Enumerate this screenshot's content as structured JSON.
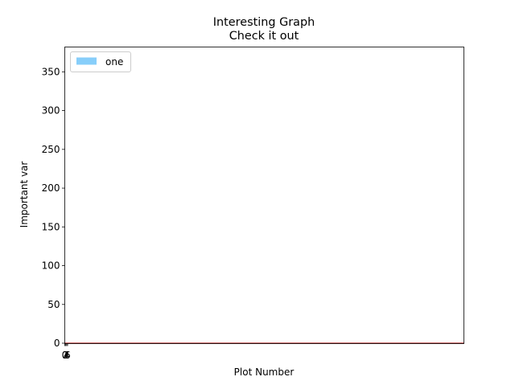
{
  "chart_data": {
    "type": "bar",
    "title": "Interesting Graph",
    "subtitle": "Check it out",
    "xlabel": "Plot Number",
    "ylabel": "Important var",
    "ylim": [
      0,
      382
    ],
    "yticks": [
      0,
      50,
      100,
      150,
      200,
      250,
      300,
      350
    ],
    "xlim": [
      0,
      850
    ],
    "xtick_labels": [
      "0",
      "2",
      "4",
      "6"
    ],
    "x": [
      0,
      2,
      4,
      6
    ],
    "series": [
      {
        "name": "one",
        "color": "#87cefa",
        "values": [
          0,
          0,
          0,
          0
        ]
      }
    ],
    "baseline_line": {
      "color": "#b22222"
    },
    "legend": {
      "position": "top-left"
    },
    "grid": false
  }
}
